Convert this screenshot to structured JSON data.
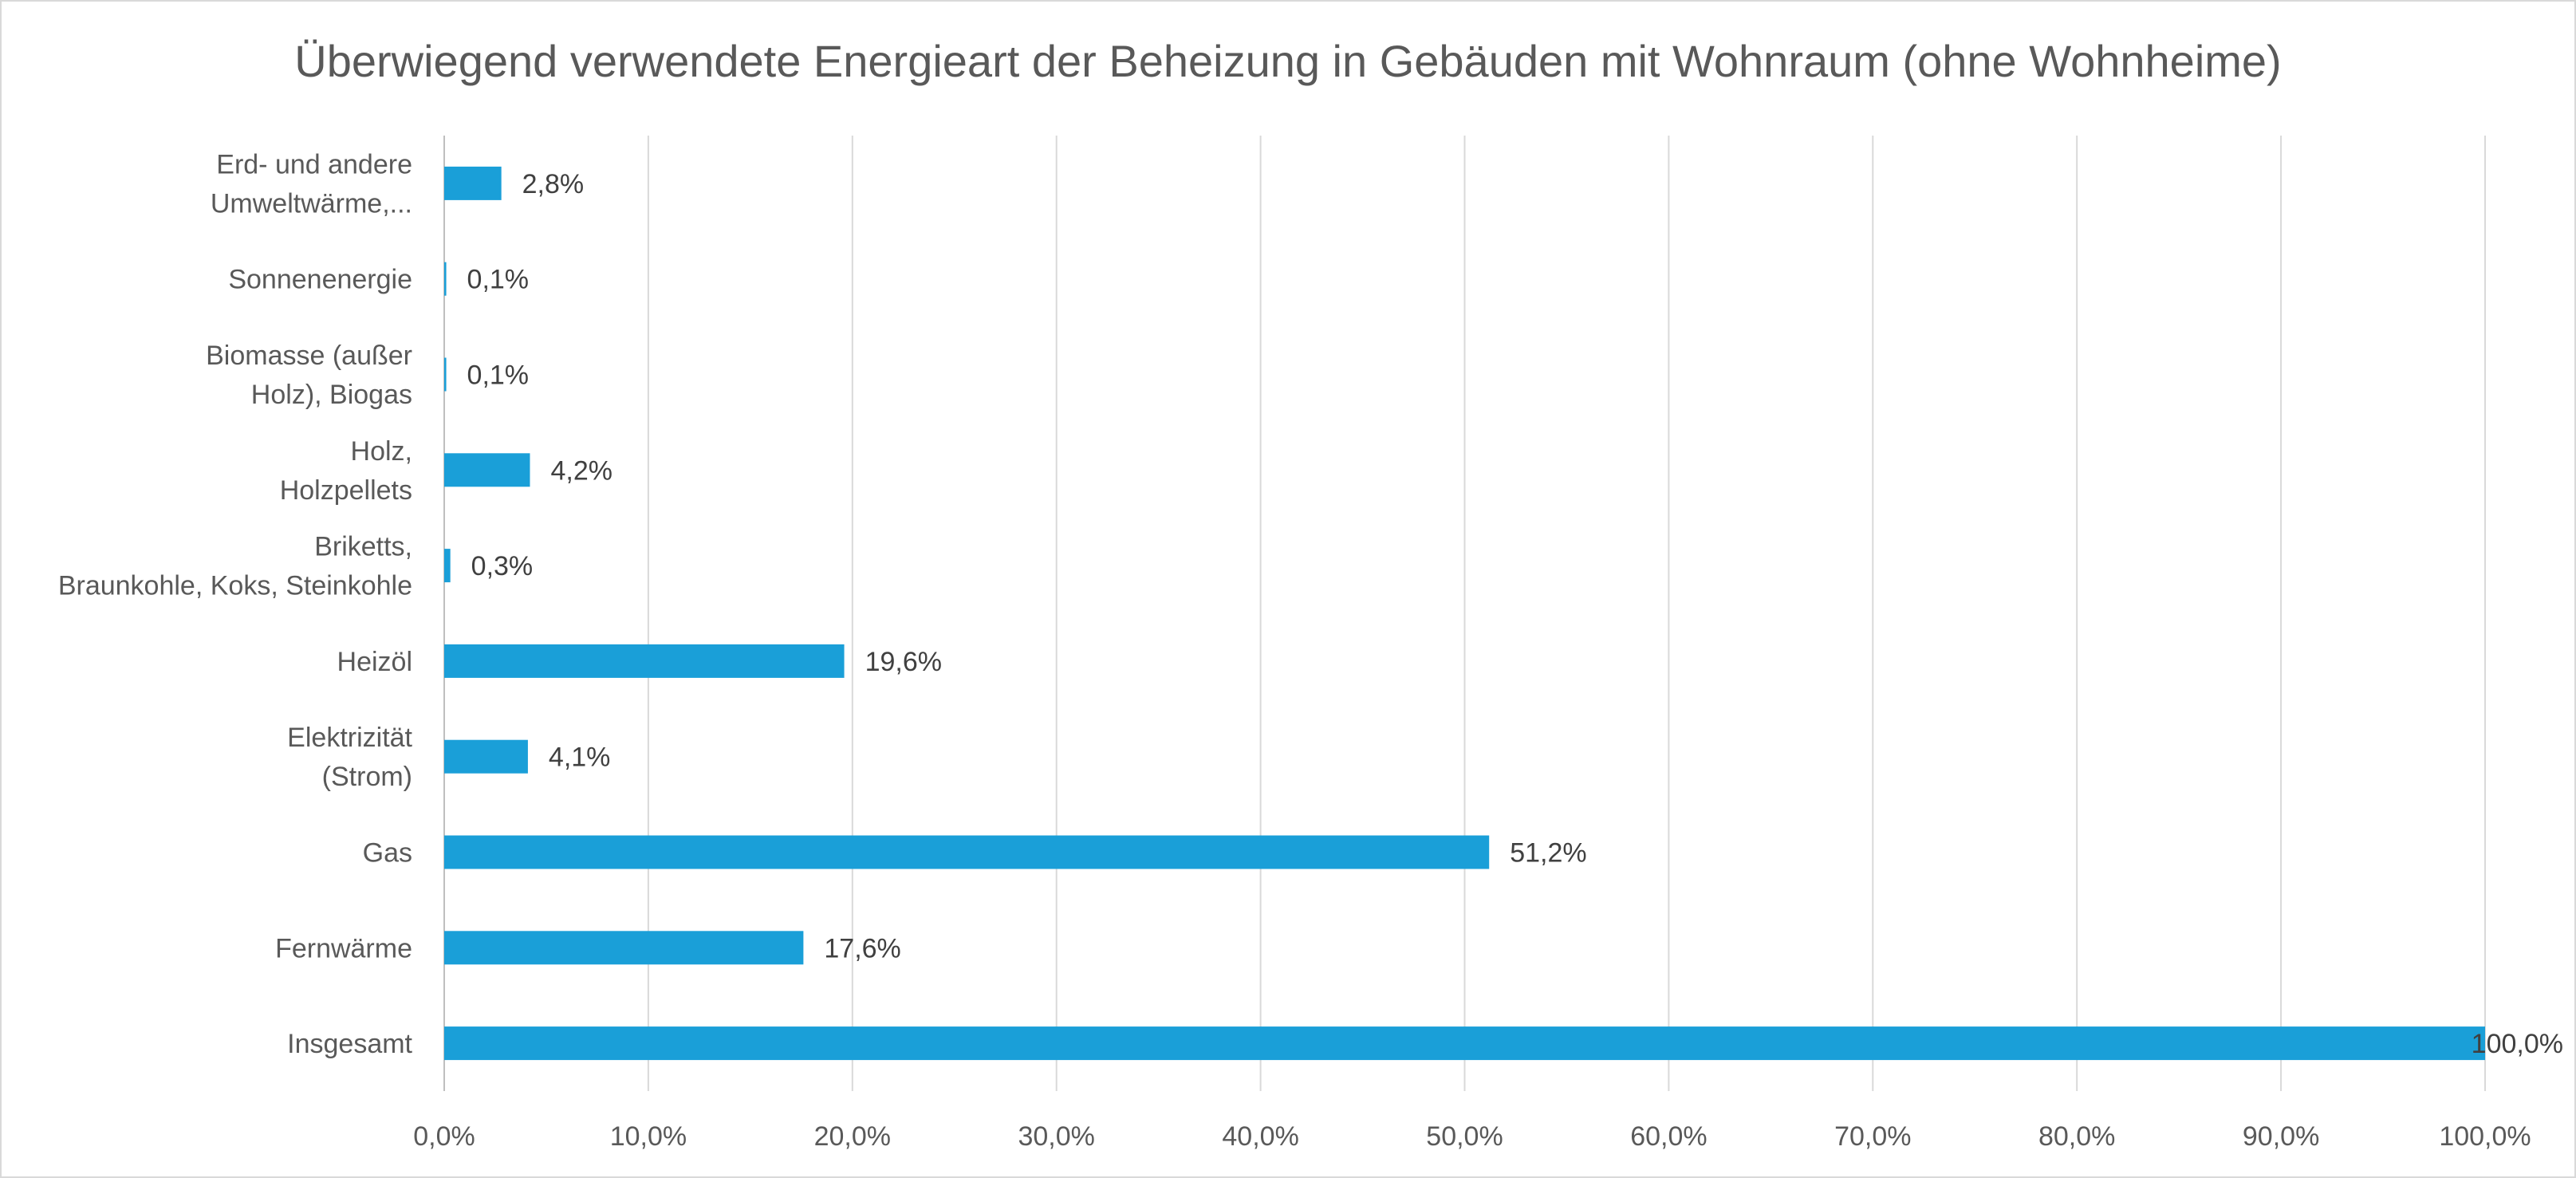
{
  "chart_data": {
    "type": "bar",
    "orientation": "horizontal",
    "title": "Überwiegend verwendete Energieart der Beheizung in Gebäuden mit Wohnraum (ohne Wohnheime)",
    "categories": [
      "Insgesamt",
      "Fernwärme",
      "Gas",
      "Elektrizität (Strom)",
      "Heizöl",
      "Briketts, Braunkohle, Koks, Steinkohle",
      "Holz, Holzpellets",
      "Biomasse (außer Holz), Biogas",
      "Sonnenenergie",
      "Erd- und andere Umweltwärme,..."
    ],
    "category_label_lines": [
      [
        "Insgesamt"
      ],
      [
        "Fernwärme"
      ],
      [
        "Gas"
      ],
      [
        "Elektrizität",
        "(Strom)"
      ],
      [
        "Heizöl"
      ],
      [
        "Briketts,",
        "Braunkohle, Koks, Steinkohle"
      ],
      [
        "Holz,",
        "Holzpellets"
      ],
      [
        "Biomasse (außer",
        "Holz), Biogas"
      ],
      [
        "Sonnenenergie"
      ],
      [
        "Erd- und andere",
        "Umweltwärme,..."
      ]
    ],
    "values": [
      100.0,
      17.6,
      51.2,
      4.1,
      19.6,
      0.3,
      4.2,
      0.1,
      0.1,
      2.8
    ],
    "data_labels": [
      "100,0%",
      "17,6%",
      "51,2%",
      "4,1%",
      "19,6%",
      "0,3%",
      "4,2%",
      "0,1%",
      "0,1%",
      "2,8%"
    ],
    "xlim": [
      0,
      100
    ],
    "xticks": [
      0,
      10,
      20,
      30,
      40,
      50,
      60,
      70,
      80,
      90,
      100
    ],
    "xtick_labels": [
      "0,0%",
      "10,0%",
      "20,0%",
      "30,0%",
      "40,0%",
      "50,0%",
      "60,0%",
      "70,0%",
      "80,0%",
      "90,0%",
      "100,0%"
    ],
    "xlabel": "",
    "ylabel": "",
    "grid": "vertical",
    "legend": "none",
    "colors": {
      "bar": "#1a9fd8",
      "grid": "#d9d9d9",
      "axis": "#bfbfbf",
      "text": "#595959",
      "data_label": "#404040"
    }
  }
}
